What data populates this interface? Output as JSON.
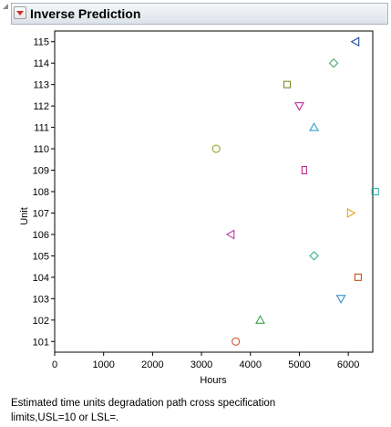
{
  "header": {
    "title": "Inverse Prediction",
    "disclosure_icon": "disclosure-triangle-icon",
    "menu_icon": "red-triangle-menu-icon"
  },
  "chart_data": {
    "type": "scatter",
    "title": "",
    "xlabel": "Hours",
    "ylabel": "Unit",
    "xlim": [
      0,
      6500
    ],
    "xticks": [
      0,
      1000,
      2000,
      3000,
      4000,
      5000,
      6000
    ],
    "grid": false,
    "categories": [
      "101",
      "102",
      "103",
      "104",
      "105",
      "106",
      "107",
      "108",
      "109",
      "110",
      "111",
      "112",
      "113",
      "114",
      "115"
    ],
    "points": [
      {
        "unit": "101",
        "hours": 3700,
        "marker": "circle",
        "color": "#d4552f"
      },
      {
        "unit": "102",
        "hours": 4200,
        "marker": "triangle-up",
        "color": "#3aa64a"
      },
      {
        "unit": "103",
        "hours": 5850,
        "marker": "triangle-down",
        "color": "#2f8cc4"
      },
      {
        "unit": "104",
        "hours": 6200,
        "marker": "square",
        "color": "#c4521c"
      },
      {
        "unit": "105",
        "hours": 5300,
        "marker": "diamond",
        "color": "#2fb090"
      },
      {
        "unit": "106",
        "hours": 3600,
        "marker": "triangle-left",
        "color": "#b93aa6"
      },
      {
        "unit": "107",
        "hours": 6050,
        "marker": "triangle-right",
        "color": "#e6a21f"
      },
      {
        "unit": "108",
        "hours": 6550,
        "marker": "square",
        "color": "#30b8b0"
      },
      {
        "unit": "109",
        "hours": 5100,
        "marker": "rect-tall",
        "color": "#c4278a"
      },
      {
        "unit": "110",
        "hours": 3300,
        "marker": "circle",
        "color": "#98a22b"
      },
      {
        "unit": "111",
        "hours": 5300,
        "marker": "triangle-up",
        "color": "#2aa4c8"
      },
      {
        "unit": "112",
        "hours": 5000,
        "marker": "triangle-down",
        "color": "#c42896"
      },
      {
        "unit": "113",
        "hours": 4750,
        "marker": "square",
        "color": "#7b8a2a"
      },
      {
        "unit": "114",
        "hours": 5700,
        "marker": "diamond",
        "color": "#55ad75"
      },
      {
        "unit": "115",
        "hours": 6150,
        "marker": "triangle-left",
        "color": "#1f4a9c"
      }
    ]
  },
  "footnote": "Estimated time units degradation path cross specification limits,USL=10 or LSL=."
}
